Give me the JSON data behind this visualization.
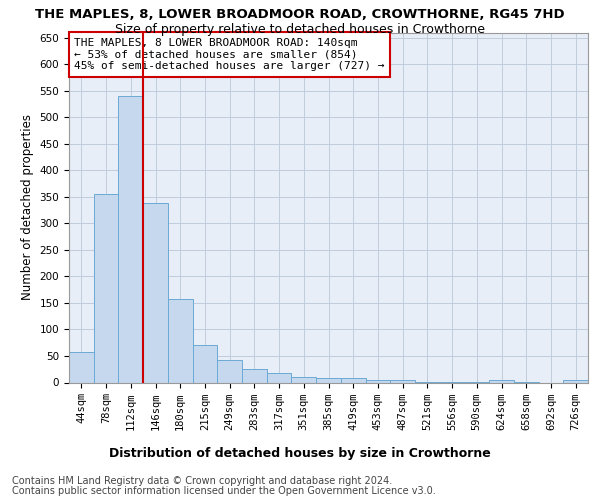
{
  "title": "THE MAPLES, 8, LOWER BROADMOOR ROAD, CROWTHORNE, RG45 7HD",
  "subtitle": "Size of property relative to detached houses in Crowthorne",
  "xlabel": "Distribution of detached houses by size in Crowthorne",
  "ylabel": "Number of detached properties",
  "categories": [
    "44sqm",
    "78sqm",
    "112sqm",
    "146sqm",
    "180sqm",
    "215sqm",
    "249sqm",
    "283sqm",
    "317sqm",
    "351sqm",
    "385sqm",
    "419sqm",
    "453sqm",
    "487sqm",
    "521sqm",
    "556sqm",
    "590sqm",
    "624sqm",
    "658sqm",
    "692sqm",
    "726sqm"
  ],
  "values": [
    58,
    355,
    540,
    338,
    157,
    70,
    42,
    25,
    17,
    10,
    9,
    9,
    4,
    4,
    1,
    1,
    1,
    5,
    1,
    0,
    5
  ],
  "bar_color": "#c5d8ee",
  "bar_edge_color": "#6aaad4",
  "vline_color": "#cc0000",
  "vline_pos": 2.5,
  "ylim": [
    0,
    660
  ],
  "yticks": [
    0,
    50,
    100,
    150,
    200,
    250,
    300,
    350,
    400,
    450,
    500,
    550,
    600,
    650
  ],
  "annotation_text": "THE MAPLES, 8 LOWER BROADMOOR ROAD: 140sqm\n← 53% of detached houses are smaller (854)\n45% of semi-detached houses are larger (727) →",
  "annotation_box_color": "#ffffff",
  "annotation_box_edge": "#cc0000",
  "footer_line1": "Contains HM Land Registry data © Crown copyright and database right 2024.",
  "footer_line2": "Contains public sector information licensed under the Open Government Licence v3.0.",
  "background_color": "#ffffff",
  "plot_bg_color": "#e8eef8",
  "grid_color": "#c0ccdc",
  "title_fontsize": 9.5,
  "subtitle_fontsize": 9,
  "xlabel_fontsize": 9,
  "ylabel_fontsize": 8.5,
  "tick_fontsize": 7.5,
  "annotation_fontsize": 8,
  "footer_fontsize": 7
}
